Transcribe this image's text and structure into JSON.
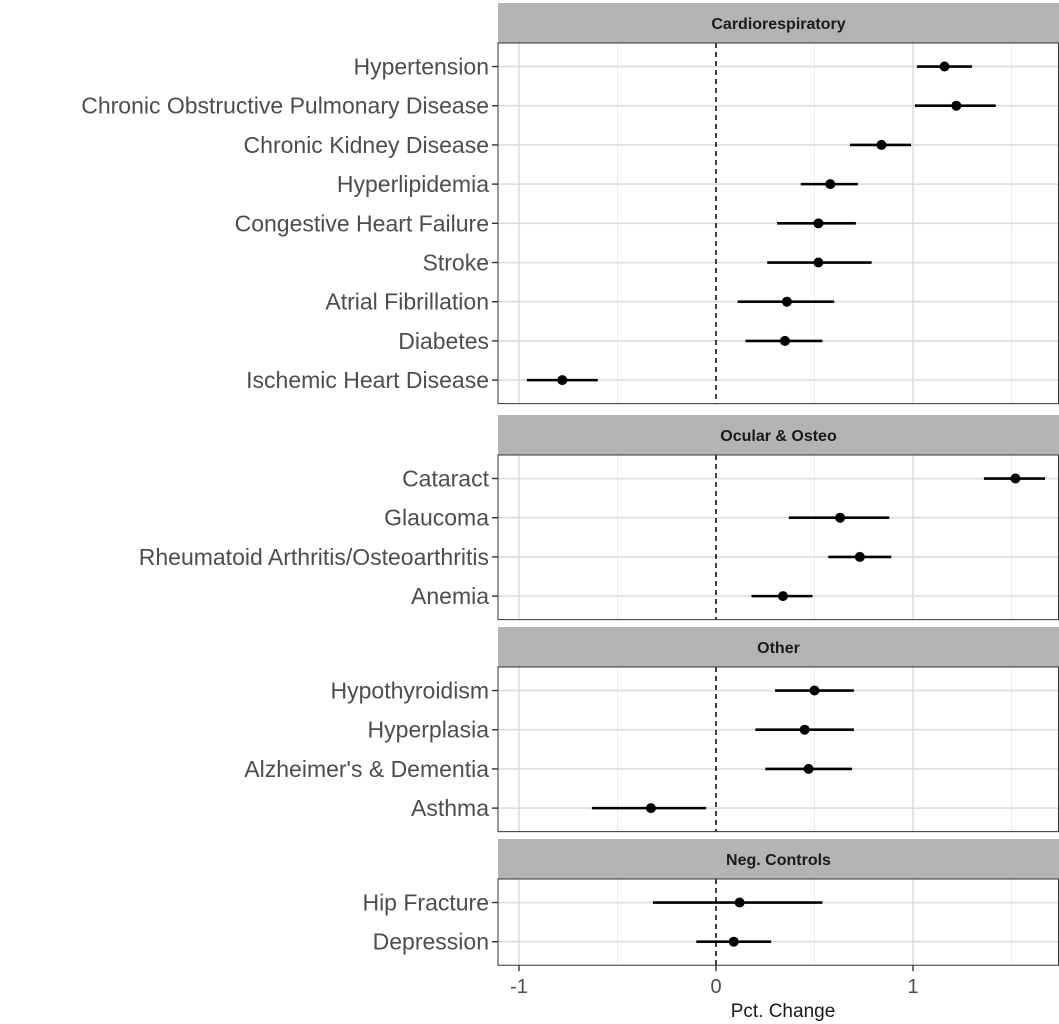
{
  "chart_data": {
    "type": "forest",
    "xlabel": "Pct. Change",
    "ylabel": "",
    "xlim": [
      -1.1,
      1.75
    ],
    "x_ticks": [
      -1,
      0,
      1
    ],
    "x_tick_labels": [
      "-1",
      "0",
      "1"
    ],
    "reference_line": 0,
    "grid": true,
    "panels": [
      {
        "name": "Cardiorespiratory",
        "rows": [
          {
            "label": "Hypertension",
            "estimate": 1.16,
            "lower": 1.02,
            "upper": 1.3
          },
          {
            "label": "Chronic Obstructive Pulmonary Disease",
            "estimate": 1.22,
            "lower": 1.01,
            "upper": 1.42
          },
          {
            "label": "Chronic Kidney Disease",
            "estimate": 0.84,
            "lower": 0.68,
            "upper": 0.99
          },
          {
            "label": "Hyperlipidemia",
            "estimate": 0.58,
            "lower": 0.43,
            "upper": 0.72
          },
          {
            "label": "Congestive Heart Failure",
            "estimate": 0.52,
            "lower": 0.31,
            "upper": 0.71
          },
          {
            "label": "Stroke",
            "estimate": 0.52,
            "lower": 0.26,
            "upper": 0.79
          },
          {
            "label": "Atrial Fibrillation",
            "estimate": 0.36,
            "lower": 0.11,
            "upper": 0.6
          },
          {
            "label": "Diabetes",
            "estimate": 0.35,
            "lower": 0.15,
            "upper": 0.54
          },
          {
            "label": "Ischemic Heart Disease",
            "estimate": -0.78,
            "lower": -0.96,
            "upper": -0.6
          }
        ]
      },
      {
        "name": "Ocular & Osteo",
        "rows": [
          {
            "label": "Cataract",
            "estimate": 1.52,
            "lower": 1.36,
            "upper": 1.67
          },
          {
            "label": "Glaucoma",
            "estimate": 0.63,
            "lower": 0.37,
            "upper": 0.88
          },
          {
            "label": "Rheumatoid Arthritis/Osteoarthritis",
            "estimate": 0.73,
            "lower": 0.57,
            "upper": 0.89
          },
          {
            "label": "Anemia",
            "estimate": 0.34,
            "lower": 0.18,
            "upper": 0.49
          }
        ]
      },
      {
        "name": "Other",
        "rows": [
          {
            "label": "Hypothyroidism",
            "estimate": 0.5,
            "lower": 0.3,
            "upper": 0.7
          },
          {
            "label": "Hyperplasia",
            "estimate": 0.45,
            "lower": 0.2,
            "upper": 0.7
          },
          {
            "label": "Alzheimer's & Dementia",
            "estimate": 0.47,
            "lower": 0.25,
            "upper": 0.69
          },
          {
            "label": "Asthma",
            "estimate": -0.33,
            "lower": -0.63,
            "upper": -0.05
          }
        ]
      },
      {
        "name": "Neg. Controls",
        "rows": [
          {
            "label": "Hip Fracture",
            "estimate": 0.12,
            "lower": -0.32,
            "upper": 0.54
          },
          {
            "label": "Depression",
            "estimate": 0.09,
            "lower": -0.1,
            "upper": 0.28
          }
        ]
      }
    ]
  }
}
